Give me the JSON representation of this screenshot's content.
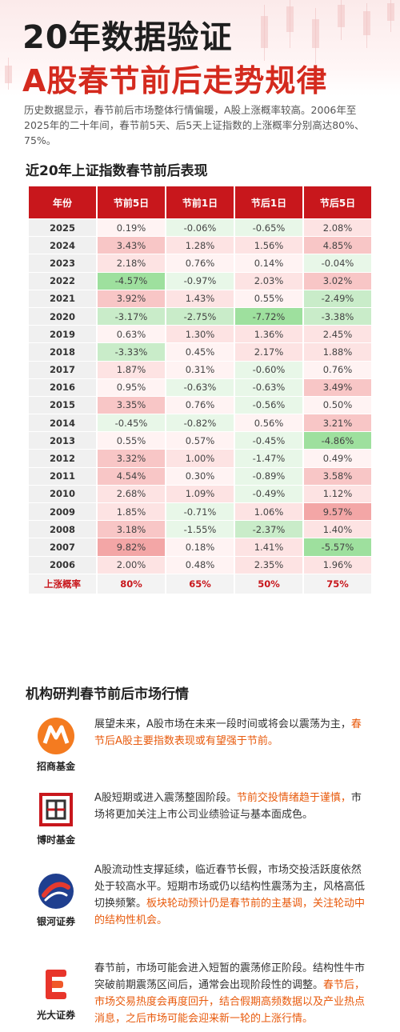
{
  "header": {
    "title_line1": "20年数据验证",
    "title_line2": "A股春节前后走势规律",
    "intro": "历史数据显示，春节前后市场整体行情偏暖，A股上涨概率较高。2006年至2025年的二十年间，春节前5天、后5天上证指数的上涨概率分别高达80%、75%。"
  },
  "table": {
    "title": "近20年上证指数春节前后表现",
    "headers": [
      "年份",
      "节前5日",
      "节前1日",
      "节后1日",
      "节后5日"
    ],
    "rows": [
      [
        "2025",
        "0.19%",
        "-0.06%",
        "-0.65%",
        "2.08%"
      ],
      [
        "2024",
        "3.43%",
        "1.28%",
        "1.56%",
        "4.85%"
      ],
      [
        "2023",
        "2.18%",
        "0.76%",
        "0.14%",
        "-0.04%"
      ],
      [
        "2022",
        "-4.57%",
        "-0.97%",
        "2.03%",
        "3.02%"
      ],
      [
        "2021",
        "3.92%",
        "1.43%",
        "0.55%",
        "-2.49%"
      ],
      [
        "2020",
        "-3.17%",
        "-2.75%",
        "-7.72%",
        "-3.38%"
      ],
      [
        "2019",
        "0.63%",
        "1.30%",
        "1.36%",
        "2.45%"
      ],
      [
        "2018",
        "-3.33%",
        "0.45%",
        "2.17%",
        "1.88%"
      ],
      [
        "2017",
        "1.87%",
        "0.31%",
        "-0.60%",
        "0.76%"
      ],
      [
        "2016",
        "0.95%",
        "-0.63%",
        "-0.63%",
        "3.49%"
      ],
      [
        "2015",
        "3.35%",
        "0.76%",
        "-0.56%",
        "0.50%"
      ],
      [
        "2014",
        "-0.45%",
        "-0.82%",
        "0.56%",
        "3.21%"
      ],
      [
        "2013",
        "0.55%",
        "0.57%",
        "-0.45%",
        "-4.86%"
      ],
      [
        "2012",
        "3.32%",
        "1.00%",
        "-1.47%",
        "0.49%"
      ],
      [
        "2011",
        "4.54%",
        "0.30%",
        "-0.89%",
        "3.58%"
      ],
      [
        "2010",
        "2.68%",
        "1.09%",
        "-0.49%",
        "1.12%"
      ],
      [
        "2009",
        "1.85%",
        "-0.71%",
        "1.06%",
        "9.57%"
      ],
      [
        "2008",
        "3.18%",
        "-1.55%",
        "-2.37%",
        "1.40%"
      ],
      [
        "2007",
        "9.82%",
        "0.18%",
        "1.41%",
        "-5.57%"
      ],
      [
        "2006",
        "2.00%",
        "0.48%",
        "2.35%",
        "1.96%"
      ]
    ],
    "rate_row": [
      "上涨概率",
      "80%",
      "65%",
      "50%",
      "75%"
    ]
  },
  "institutions": {
    "title": "机构研判春节前后市场行情",
    "items": [
      {
        "name": "招商基金",
        "text_plain": "展望未来，A股市场在未来一段时间或将会以震荡为主，",
        "text_hl": "春节后A股主要指数表现或有望强于节前。",
        "text_tail": ""
      },
      {
        "name": "博时基金",
        "text_plain": "A股短期或进入震荡整固阶段。",
        "text_hl": "节前交投情绪趋于谨慎，",
        "text_tail": "市场将更加关注上市公司业绩验证与基本面成色。"
      },
      {
        "name": "银河证券",
        "text_plain": "A股流动性支撑延续，临近春节长假，市场交投活跃度依然处于较高水平。短期市场或仍以结构性震荡为主，风格高低切换频繁。",
        "text_hl": "板块轮动预计仍是春节前的主基调，关注轮动中的结构性机会。",
        "text_tail": ""
      },
      {
        "name": "光大证券",
        "text_plain": "春节前，市场可能会进入短暂的震荡修正阶段。结构性牛市突破前期震荡区间后，通常会出现阶段性的调整。",
        "text_hl": "春节后，市场交易热度会再度回升，结合假期高频数据以及产业热点消息，之后市场可能会迎来新一轮的上涨行情。",
        "text_tail": ""
      }
    ]
  },
  "colors": {
    "brand_red": "#c8171c",
    "title_red": "#d42a1e",
    "highlight_orange": "#e85a0c",
    "up_cell": "#fde3e3",
    "down_cell": "#c9ecc9"
  }
}
